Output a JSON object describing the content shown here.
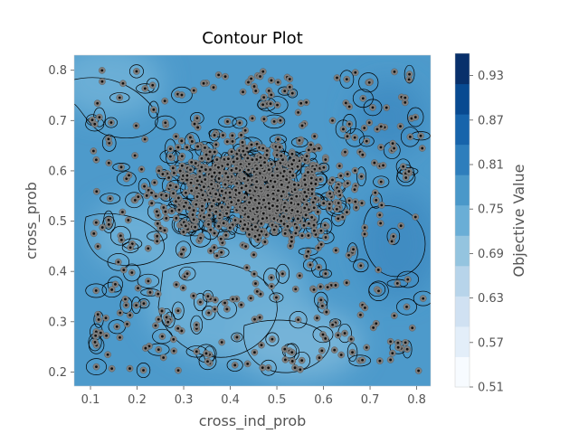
{
  "chart_data": {
    "type": "contour",
    "title": "Contour Plot",
    "xlabel": "cross_ind_prob",
    "ylabel": "cross_prob",
    "xlim": [
      0.065,
      0.83
    ],
    "ylim": [
      0.172,
      0.83
    ],
    "x_ticks": [
      "0.1",
      "0.2",
      "0.3",
      "0.4",
      "0.5",
      "0.6",
      "0.7",
      "0.8"
    ],
    "y_ticks": [
      "0.2",
      "0.3",
      "0.4",
      "0.5",
      "0.6",
      "0.7",
      "0.8"
    ],
    "colorbar": {
      "label": "Objective Value",
      "range": [
        0.51,
        0.96
      ],
      "ticks": [
        "0.51",
        "0.57",
        "0.63",
        "0.69",
        "0.75",
        "0.81",
        "0.87",
        "0.93"
      ],
      "colors": [
        "#f7fbff",
        "#e3eef9",
        "#d0e1f2",
        "#b7d4ea",
        "#94c4df",
        "#6aaed6",
        "#4a98c9",
        "#2e7ebc",
        "#1764ab",
        "#084a91",
        "#08306b"
      ]
    },
    "grid": false
  }
}
